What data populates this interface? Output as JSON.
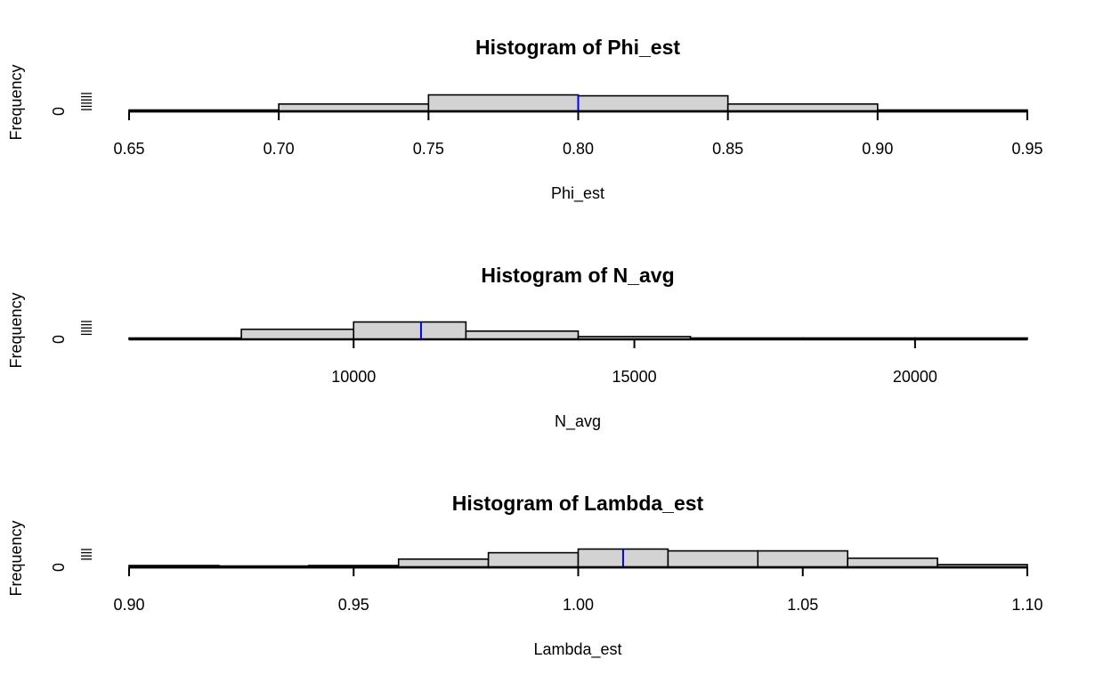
{
  "chart_data": [
    {
      "type": "bar",
      "title": "Histogram of Phi_est",
      "xlabel": "Phi_est",
      "ylabel": "Frequency",
      "xlim": [
        0.65,
        0.95
      ],
      "xticks": [
        "0.65",
        "0.70",
        "0.75",
        "0.80",
        "0.85",
        "0.90",
        "0.95"
      ],
      "yticks": [
        "0"
      ],
      "bin_edges": [
        0.65,
        0.7,
        0.75,
        0.8,
        0.85,
        0.9,
        0.95
      ],
      "values": [
        0.5,
        4,
        9,
        8.5,
        4,
        0.5
      ],
      "vline": 0.8,
      "vline_color": "#0000ff",
      "bar_fill": "#d3d3d3"
    },
    {
      "type": "bar",
      "title": "Histogram of N_avg",
      "xlabel": "N_avg",
      "ylabel": "Frequency",
      "xlim": [
        6000,
        22000
      ],
      "xticks": [
        "10000",
        "15000",
        "20000"
      ],
      "yticks": [
        "0"
      ],
      "bin_edges": [
        6000,
        8000,
        10000,
        12000,
        14000,
        16000,
        18000,
        20000,
        22000
      ],
      "values": [
        0.5,
        5.5,
        9.5,
        4.5,
        1.5,
        0.7,
        0.3,
        0.1
      ],
      "vline": 11200,
      "vline_color": "#0000ff",
      "bar_fill": "#d3d3d3"
    },
    {
      "type": "bar",
      "title": "Histogram of Lambda_est",
      "xlabel": "Lambda_est",
      "ylabel": "Frequency",
      "xlim": [
        0.9,
        1.1
      ],
      "xticks": [
        "0.90",
        "0.95",
        "1.00",
        "1.05",
        "1.10"
      ],
      "yticks": [
        "0"
      ],
      "bin_edges": [
        0.9,
        0.92,
        0.94,
        0.96,
        0.98,
        1.0,
        1.02,
        1.04,
        1.06,
        1.08,
        1.1
      ],
      "values": [
        1,
        0.5,
        1,
        4.5,
        8,
        10,
        9,
        9,
        5,
        1.5
      ],
      "vline": 1.01,
      "vline_color": "#0000ff",
      "bar_fill": "#d3d3d3"
    }
  ]
}
